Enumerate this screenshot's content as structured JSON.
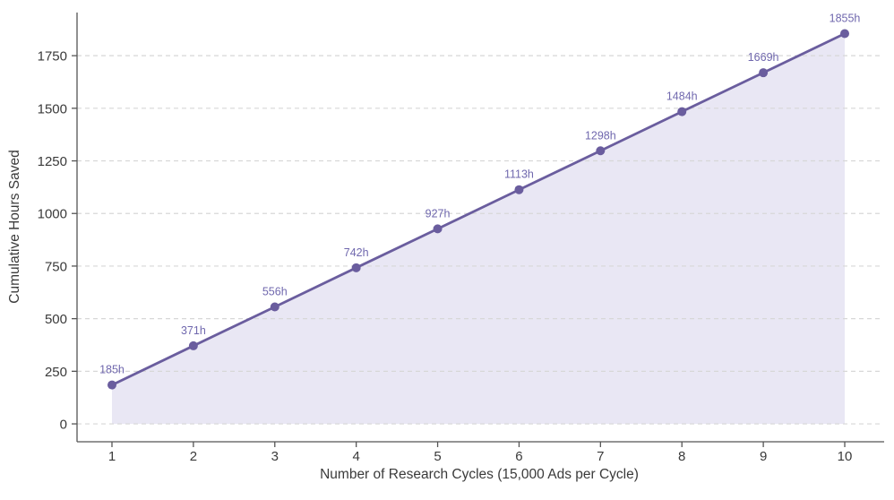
{
  "chart_data": {
    "type": "line",
    "title": "",
    "xlabel": "Number of Research Cycles (15,000 Ads per Cycle)",
    "ylabel": "Cumulative Hours Saved",
    "x": [
      1,
      2,
      3,
      4,
      5,
      6,
      7,
      8,
      9,
      10
    ],
    "values": [
      185,
      371,
      556,
      742,
      927,
      1113,
      1298,
      1484,
      1669,
      1855
    ],
    "point_labels": [
      "185h",
      "371h",
      "556h",
      "742h",
      "927h",
      "1113h",
      "1298h",
      "1484h",
      "1669h",
      "1855h"
    ],
    "x_ticks": [
      1,
      2,
      3,
      4,
      5,
      6,
      7,
      8,
      9,
      10
    ],
    "y_ticks": [
      0,
      250,
      500,
      750,
      1000,
      1250,
      1500,
      1750
    ],
    "xlim": [
      0.571,
      10.44
    ],
    "ylim": [
      -85,
      1955
    ],
    "grid": "horizontal-dashed",
    "legend": "none",
    "area_fill": true,
    "colors": {
      "line": "#6a5d9e",
      "marker": "#6a5d9e",
      "area": "#e9e7f4",
      "point_label": "#7068ae",
      "grid": "#d7d7d7",
      "spine": "#555555",
      "tick_label": "#3a3a3a",
      "axis_label": "#3a3a3a"
    }
  }
}
